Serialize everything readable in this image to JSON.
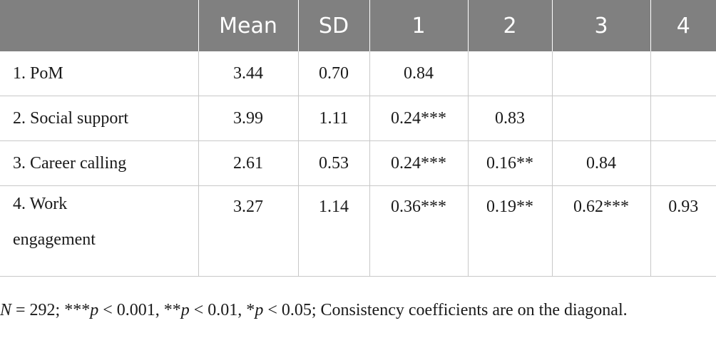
{
  "header": [
    "",
    "Mean",
    "SD",
    "1",
    "2",
    "3",
    "4"
  ],
  "rows": [
    {
      "label": "1. PoM",
      "mean": "3.44",
      "sd": "0.70",
      "c1": "0.84",
      "c2": "",
      "c3": "",
      "c4": ""
    },
    {
      "label": "2. Social support",
      "mean": "3.99",
      "sd": "1.11",
      "c1": "0.24***",
      "c2": "0.83",
      "c3": "",
      "c4": ""
    },
    {
      "label": "3. Career calling",
      "mean": "2.61",
      "sd": "0.53",
      "c1": "0.24***",
      "c2": "0.16**",
      "c3": "0.84",
      "c4": ""
    },
    {
      "label": "4. Work engagement",
      "mean": "3.27",
      "sd": "1.14",
      "c1": "0.36***",
      "c2": "0.19**",
      "c3": "0.62***",
      "c4": "0.93"
    }
  ],
  "note": {
    "n_symbol": "N",
    "n_value": " = 292; ***",
    "p1": "p",
    "t1": " < 0.001, **",
    "p2": "p",
    "t2": " < 0.01, *",
    "p3": "p",
    "t3": " < 0.05; Consistency coefficients are on the diagonal."
  }
}
